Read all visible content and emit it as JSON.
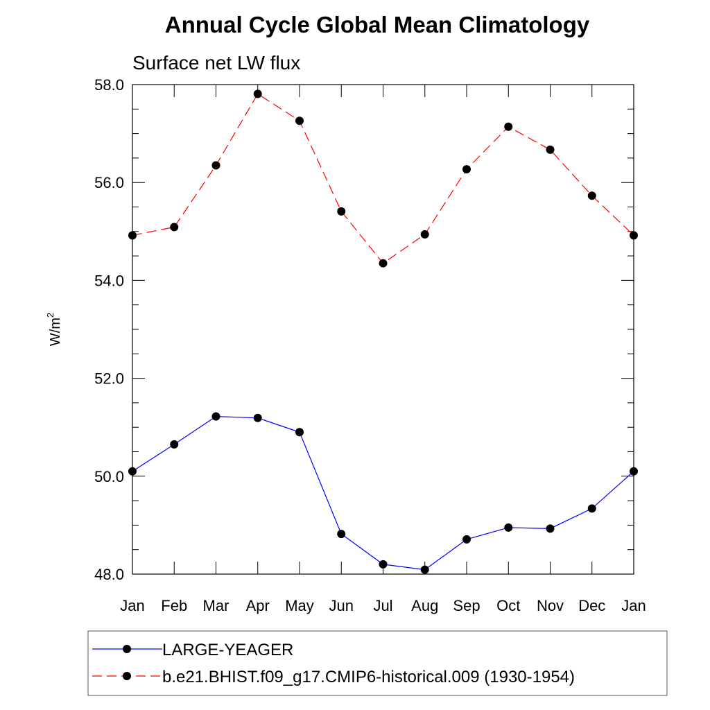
{
  "chart_data": {
    "type": "line",
    "title": "Annual Cycle Global Mean Climatology",
    "subtitle": "Surface net LW flux",
    "ylabel": "W/m",
    "ylabel_sup": "2",
    "xlabel": "",
    "categories": [
      "Jan",
      "Feb",
      "Mar",
      "Apr",
      "May",
      "Jun",
      "Jul",
      "Aug",
      "Sep",
      "Oct",
      "Nov",
      "Dec",
      "Jan"
    ],
    "ylim": [
      48.0,
      58.0
    ],
    "yticks": [
      "48.0",
      "50.0",
      "52.0",
      "54.0",
      "56.0",
      "58.0"
    ],
    "yticks_values": [
      48,
      50,
      52,
      54,
      56,
      58
    ],
    "grid": false,
    "legend_position": "bottom",
    "series": [
      {
        "name": "LARGE-YEAGER",
        "color": "#0000ff",
        "dash": "solid",
        "values": [
          50.1,
          50.65,
          51.22,
          51.19,
          50.9,
          48.82,
          48.2,
          48.09,
          48.71,
          48.95,
          48.93,
          49.34,
          50.1
        ]
      },
      {
        "name": "b.e21.BHIST.f09_g17.CMIP6-historical.009 (1930-1954)",
        "color": "#ff0000",
        "dash": "dashed",
        "values": [
          54.92,
          55.09,
          56.35,
          57.81,
          57.26,
          55.41,
          54.35,
          54.94,
          56.27,
          57.14,
          56.67,
          55.73,
          54.92
        ]
      }
    ]
  }
}
